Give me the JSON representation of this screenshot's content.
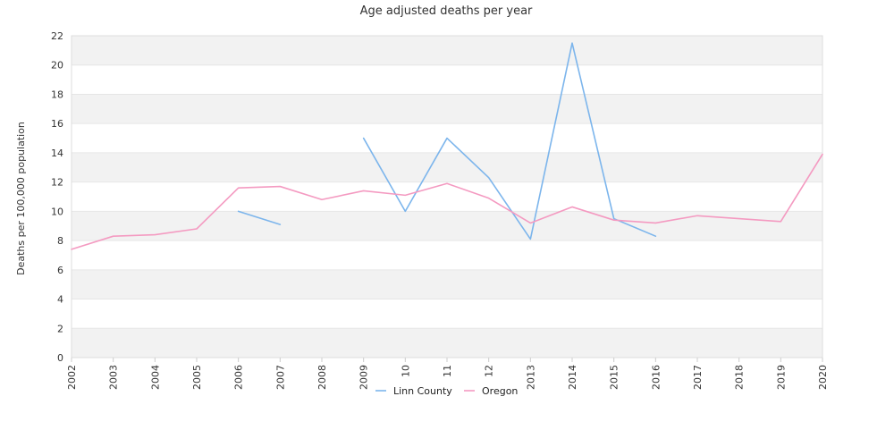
{
  "chart_data": {
    "type": "line",
    "title": "Age adjusted deaths per year",
    "xlabel": "",
    "ylabel": "Deaths per 100,000 population",
    "ylim": [
      0,
      22
    ],
    "yticks": [
      0,
      2,
      4,
      6,
      8,
      10,
      12,
      14,
      16,
      18,
      20,
      22
    ],
    "categories": [
      "2002",
      "2003",
      "2004",
      "2005",
      "2006",
      "2007",
      "2008",
      "2009",
      "10",
      "11",
      "12",
      "2013",
      "2014",
      "2015",
      "2016",
      "2017",
      "2018",
      "2019",
      "2020"
    ],
    "grid": "horizontal bands",
    "legend_position": "bottom",
    "series": [
      {
        "name": "Linn County",
        "color": "#7cb5ec",
        "values": [
          null,
          null,
          null,
          null,
          10.0,
          9.1,
          null,
          15.0,
          10.0,
          15.0,
          12.3,
          8.1,
          21.5,
          9.5,
          8.3,
          null,
          null,
          null,
          null
        ]
      },
      {
        "name": "Oregon",
        "color": "#f49ac1",
        "values": [
          7.4,
          8.3,
          8.4,
          8.8,
          11.6,
          11.7,
          10.8,
          11.4,
          11.1,
          11.9,
          10.9,
          9.2,
          10.3,
          9.4,
          9.2,
          9.7,
          9.5,
          9.3,
          13.9
        ]
      }
    ]
  }
}
